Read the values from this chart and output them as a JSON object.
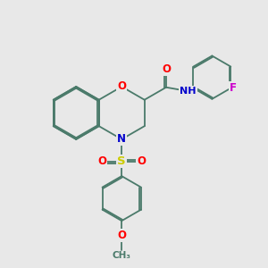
{
  "background_color": "#e8e8e8",
  "bond_color": "#4a7a6a",
  "atom_colors": {
    "O": "#ff0000",
    "N": "#0000cc",
    "S": "#cccc00",
    "F": "#cc00cc",
    "H": "#557777",
    "C": "#4a7a6a"
  },
  "font_size": 8.5,
  "line_width": 1.3,
  "figsize": [
    3.0,
    3.0
  ],
  "dpi": 100
}
